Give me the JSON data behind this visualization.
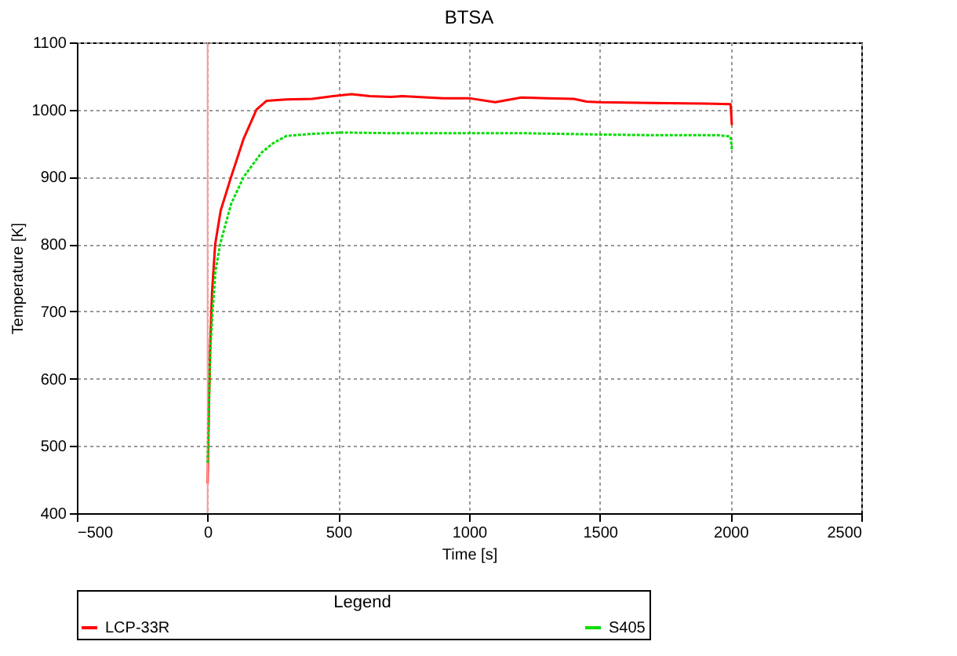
{
  "chart_data": {
    "type": "line",
    "title": "BTSA",
    "xlabel": "Time [s]",
    "ylabel": "Temperature [K]",
    "legend_title": "Legend",
    "xlim": [
      -500,
      2500
    ],
    "xticks": [
      -500,
      0,
      500,
      1000,
      1500,
      2000,
      2500
    ],
    "ylim": [
      400,
      1100
    ],
    "yticks": [
      400,
      500,
      600,
      700,
      800,
      900,
      1000,
      1100
    ],
    "grid": true,
    "legend": "bottom",
    "ref_lines": [
      {
        "axis": "x",
        "value": 0,
        "color": "#ff9999"
      }
    ],
    "series": [
      {
        "name": "LCP-33R",
        "color": "#ff0000",
        "line_style": "solid",
        "x": [
          0,
          5,
          10,
          17,
          29,
          50,
          90,
          138,
          187,
          225,
          300,
          400,
          480,
          550,
          620,
          700,
          744,
          900,
          1000,
          1100,
          1200,
          1300,
          1400,
          1450,
          1500,
          1700,
          1900,
          2000,
          2005
        ],
        "values": [
          444,
          560,
          650,
          729,
          800,
          850,
          900,
          957,
          1000,
          1013,
          1015,
          1016,
          1020,
          1023,
          1020,
          1019,
          1020,
          1017,
          1017,
          1011,
          1018,
          1017,
          1016,
          1012,
          1011,
          1010,
          1009,
          1008,
          977
        ]
      },
      {
        "name": "S405",
        "color": "#00dd00",
        "line_style": "dashed",
        "x": [
          0,
          5,
          10,
          19,
          30,
          48,
          90,
          138,
          206,
          250,
          302,
          400,
          513,
          700,
          1000,
          1200,
          1500,
          1700,
          1950,
          2000,
          2005
        ],
        "values": [
          475,
          560,
          640,
          700,
          760,
          800,
          860,
          900,
          936,
          950,
          961,
          964,
          966,
          965,
          965,
          965,
          963,
          962,
          962,
          960,
          941
        ]
      }
    ]
  }
}
